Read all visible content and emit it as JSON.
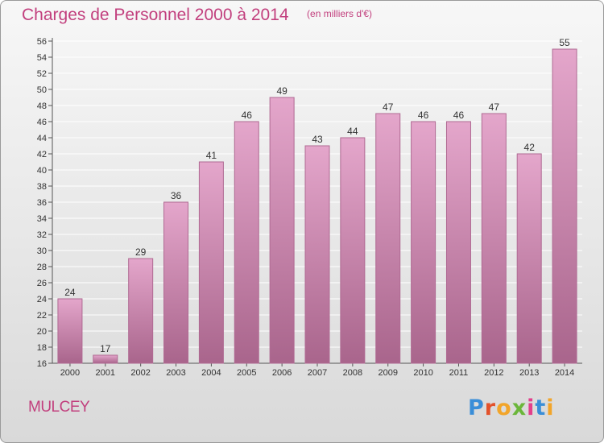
{
  "header": {
    "title": "Charges de Personnel 2000 à 2014",
    "subtitle": "(en milliers d'€)"
  },
  "footer": {
    "commune": "MULCEY",
    "logo_text": "Proxiti",
    "logo_colors": [
      "#3a8ed8",
      "#e3522b",
      "#f2a52a",
      "#6bb63a",
      "#e33f8b",
      "#3a8ed8",
      "#f2a52a"
    ]
  },
  "colors": {
    "bar_fill_top": "#e4a6cb",
    "bar_fill_bottom": "#a9658c",
    "bar_stroke": "#b06a93",
    "title": "#c2407e"
  },
  "chart_data": {
    "type": "bar",
    "categories": [
      "2000",
      "2001",
      "2002",
      "2003",
      "2004",
      "2005",
      "2006",
      "2007",
      "2008",
      "2009",
      "2010",
      "2011",
      "2012",
      "2013",
      "2014"
    ],
    "values": [
      24,
      17,
      29,
      36,
      41,
      46,
      49,
      43,
      44,
      47,
      46,
      46,
      47,
      42,
      55
    ],
    "data_labels": [
      "24",
      "17",
      "29",
      "36",
      "41",
      "46",
      "49",
      "43",
      "44",
      "47",
      "46",
      "46",
      "47",
      "42",
      "55"
    ],
    "yticks": [
      "16",
      "18",
      "20",
      "22",
      "24",
      "26",
      "28",
      "30",
      "32",
      "34",
      "36",
      "38",
      "40",
      "42",
      "44",
      "46",
      "48",
      "50",
      "52",
      "54",
      "56"
    ],
    "ylim": [
      16,
      56
    ],
    "grid": true,
    "legend": "none"
  }
}
